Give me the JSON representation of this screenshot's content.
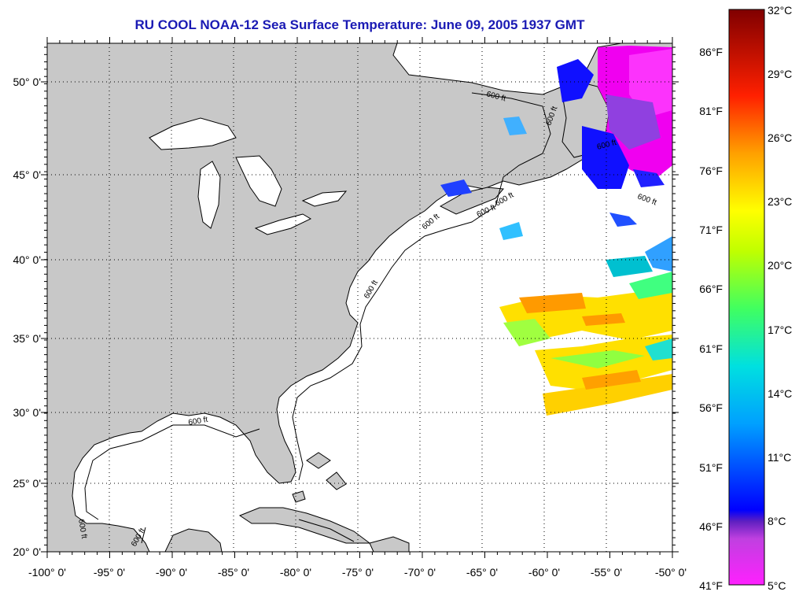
{
  "map_title": "RU COOL  NOAA-12  Sea Surface Temperature:  June 09, 2005 1937 GMT",
  "colors": {
    "land": "#c8c8c8",
    "ocean": "#ffffff",
    "title": "#1a1ab4",
    "coast": "#000000"
  },
  "axes": {
    "lon_labels": [
      "-100° 0'",
      "-95° 0'",
      "-90° 0'",
      "-85° 0'",
      "-80° 0'",
      "-75° 0'",
      "-70° 0'",
      "-65° 0'",
      "-60° 0'",
      "-55° 0'",
      "-50° 0'"
    ],
    "lat_labels": [
      "50° 0'",
      "45° 0'",
      "40° 0'",
      "35° 0'",
      "30° 0'",
      "25° 0'",
      "20° 0'"
    ],
    "lon_range": [
      -100,
      -50
    ],
    "lat_range": [
      20,
      52.3
    ],
    "grid": "dotted"
  },
  "contours": [
    {
      "label": "600 ft"
    },
    {
      "label": "600 ft"
    },
    {
      "label": "600 ft"
    },
    {
      "label": "600 ft"
    },
    {
      "label": "600 ft"
    },
    {
      "label": "600 ft"
    },
    {
      "label": "600 ft"
    },
    {
      "label": "600 ft"
    },
    {
      "label": "600 ft"
    },
    {
      "label": "600 ft"
    },
    {
      "label": "600 ft"
    }
  ],
  "colorbar": {
    "celsius_labels": [
      "32°C",
      "29°C",
      "26°C",
      "23°C",
      "20°C",
      "17°C",
      "14°C",
      "11°C",
      "8°C",
      "5°C"
    ],
    "fahrenheit_labels": [
      "86°F",
      "81°F",
      "76°F",
      "71°F",
      "66°F",
      "61°F",
      "56°F",
      "51°F",
      "46°F",
      "41°F"
    ],
    "range_c": [
      5,
      32
    ],
    "stops": [
      "#ff00ff",
      "#c040e0",
      "#6020c0",
      "#0000ff",
      "#00a0ff",
      "#00e0ff",
      "#00ff80",
      "#a0ff00",
      "#ffff00",
      "#ff9000",
      "#ff0000",
      "#800000"
    ]
  }
}
